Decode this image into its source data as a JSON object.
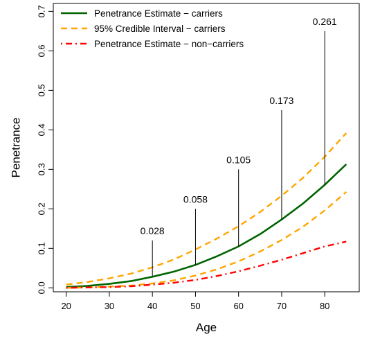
{
  "chart_data": {
    "type": "line",
    "xlabel": "Age",
    "ylabel": "Penetrance",
    "xlim": [
      17,
      88
    ],
    "ylim": [
      -0.01,
      0.72
    ],
    "x_ticks": [
      20,
      30,
      40,
      50,
      60,
      70,
      80
    ],
    "y_ticks": [
      0.0,
      0.1,
      0.2,
      0.3,
      0.4,
      0.5,
      0.6,
      0.7
    ],
    "x_tick_labels": [
      "20",
      "30",
      "40",
      "50",
      "60",
      "70",
      "80"
    ],
    "y_tick_labels": [
      "0.0",
      "0.1",
      "0.2",
      "0.3",
      "0.4",
      "0.5",
      "0.6",
      "0.7"
    ],
    "grid": false,
    "legend_position": "top-left",
    "series": [
      {
        "name": "Penetrance Estimate − carriers",
        "color": "#006400",
        "style": "solid",
        "x": [
          20,
          25,
          30,
          35,
          40,
          45,
          50,
          55,
          60,
          65,
          70,
          75,
          80,
          85
        ],
        "y": [
          0.002,
          0.005,
          0.01,
          0.017,
          0.028,
          0.041,
          0.058,
          0.08,
          0.105,
          0.136,
          0.173,
          0.214,
          0.261,
          0.313
        ]
      },
      {
        "name": "95% Credible Interval − carriers",
        "color": "#FFA500",
        "style": "dashed",
        "x": [
          20,
          25,
          30,
          35,
          40,
          45,
          50,
          55,
          60,
          65,
          70,
          75,
          80,
          85
        ],
        "y": [
          0.008,
          0.015,
          0.024,
          0.036,
          0.052,
          0.072,
          0.097,
          0.125,
          0.156,
          0.192,
          0.233,
          0.279,
          0.332,
          0.392
        ]
      },
      {
        "name": "",
        "color": "#FFA500",
        "style": "dashed",
        "x": [
          20,
          25,
          30,
          35,
          40,
          45,
          50,
          55,
          60,
          65,
          70,
          75,
          80,
          85
        ],
        "y": [
          0.0,
          0.001,
          0.003,
          0.006,
          0.011,
          0.019,
          0.031,
          0.047,
          0.067,
          0.092,
          0.121,
          0.155,
          0.196,
          0.243
        ]
      },
      {
        "name": "Penetrance Estimate − non−carriers",
        "color": "#FF0000",
        "style": "dotdash",
        "x": [
          20,
          25,
          30,
          35,
          40,
          45,
          50,
          55,
          60,
          65,
          70,
          75,
          80,
          85
        ],
        "y": [
          0.0,
          0.001,
          0.002,
          0.004,
          0.008,
          0.013,
          0.02,
          0.03,
          0.042,
          0.056,
          0.071,
          0.088,
          0.105,
          0.117
        ]
      }
    ],
    "annotations": [
      {
        "x": 40,
        "y_low": 0.028,
        "y_high": 0.12,
        "label": "0.028"
      },
      {
        "x": 50,
        "y_low": 0.058,
        "y_high": 0.2,
        "label": "0.058"
      },
      {
        "x": 60,
        "y_low": 0.105,
        "y_high": 0.3,
        "label": "0.105"
      },
      {
        "x": 70,
        "y_low": 0.173,
        "y_high": 0.45,
        "label": "0.173"
      },
      {
        "x": 80,
        "y_low": 0.261,
        "y_high": 0.65,
        "label": "0.261"
      }
    ]
  }
}
